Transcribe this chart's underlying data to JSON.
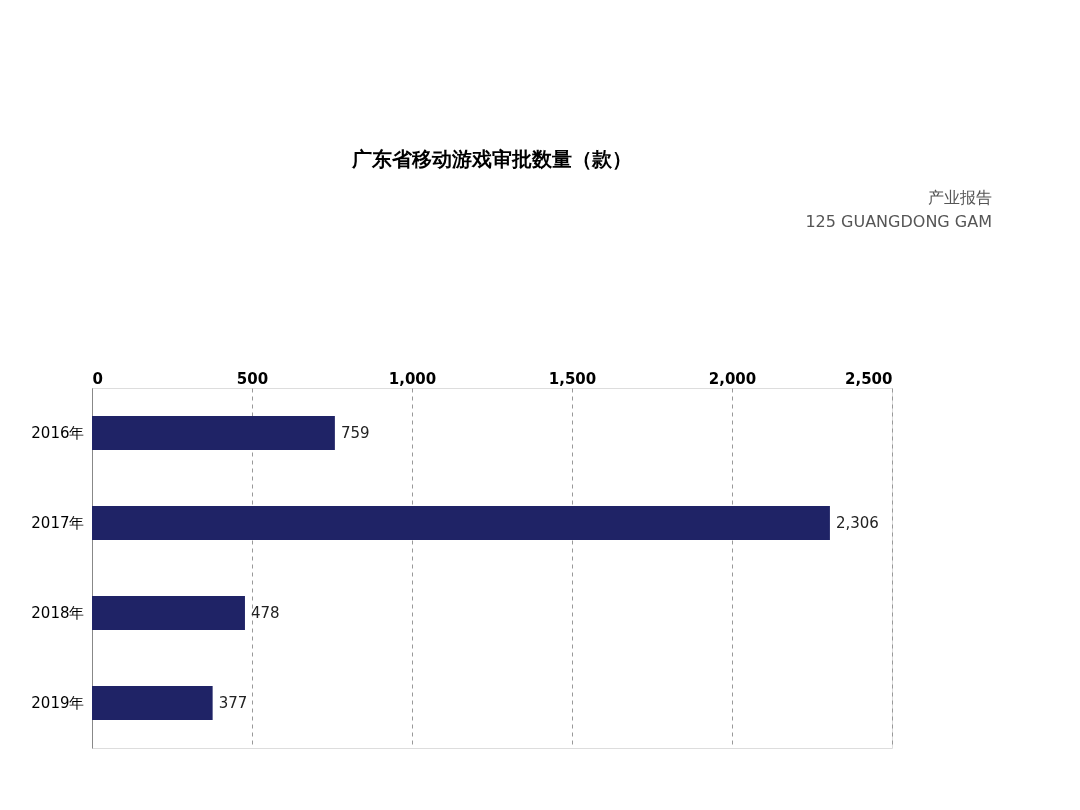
{
  "chart_data": {
    "type": "bar",
    "orientation": "horizontal",
    "title": "广东省移动游戏审批数量（款）",
    "categories": [
      "2016年",
      "2017年",
      "2018年",
      "2019年"
    ],
    "values": [
      759,
      2306,
      478,
      377
    ],
    "color": "#1f2366",
    "value_labels": [
      "759",
      "2,306",
      "478",
      "377"
    ],
    "xlim": [
      0,
      2500
    ],
    "xticks": [
      0,
      500,
      {
        "value": 1000,
        "label": "1,000"
      },
      {
        "value": 1500,
        "label": "1,500"
      },
      {
        "value": 2000,
        "label": "2,000"
      },
      {
        "value": 2500,
        "label": "2,500"
      }
    ],
    "grid": "x",
    "annotations": [
      "产业报告",
      "125 GUANGDONG GAM"
    ]
  }
}
